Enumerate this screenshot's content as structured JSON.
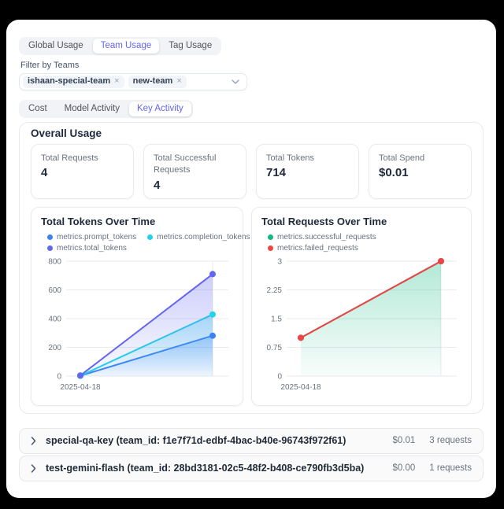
{
  "primary_tabs": [
    {
      "label": "Global Usage",
      "active": false
    },
    {
      "label": "Team Usage",
      "active": true
    },
    {
      "label": "Tag Usage",
      "active": false
    }
  ],
  "filter": {
    "label": "Filter by Teams",
    "selected_teams": [
      "ishaan-special-team",
      "new-team"
    ]
  },
  "secondary_tabs": [
    {
      "label": "Cost",
      "active": false
    },
    {
      "label": "Model Activity",
      "active": false
    },
    {
      "label": "Key Activity",
      "active": true
    }
  ],
  "overall_usage": {
    "title": "Overall Usage",
    "stats": [
      {
        "label": "Total Requests",
        "value": "4"
      },
      {
        "label": "Total Successful Requests",
        "value": "4"
      },
      {
        "label": "Total Tokens",
        "value": "714"
      },
      {
        "label": "Total Spend",
        "value": "$0.01"
      }
    ]
  },
  "chart_data": [
    {
      "type": "area",
      "title": "Total Tokens Over Time",
      "categories": [
        "2025-04-18",
        ""
      ],
      "x_tick_labels": [
        "2025-04-18"
      ],
      "series": [
        {
          "name": "metrics.prompt_tokens",
          "color": "#3b82f6",
          "values": [
            2,
            281
          ],
          "area": true
        },
        {
          "name": "metrics.completion_tokens",
          "color": "#22d3ee",
          "values": [
            2,
            429
          ],
          "area": true
        },
        {
          "name": "metrics.total_tokens",
          "color": "#6366f1",
          "values": [
            4,
            710
          ],
          "area": true
        }
      ],
      "ylim": [
        0,
        800
      ],
      "yticks": [
        0,
        200,
        400,
        600,
        800
      ],
      "grid": true,
      "legend_position": "top"
    },
    {
      "type": "area",
      "title": "Total Requests Over Time",
      "categories": [
        "2025-04-18",
        ""
      ],
      "x_tick_labels": [
        "2025-04-18"
      ],
      "series": [
        {
          "name": "metrics.successful_requests",
          "color": "#10b981",
          "values": [
            1,
            3
          ],
          "area": true
        },
        {
          "name": "metrics.failed_requests",
          "color": "#ef4444",
          "values": [
            1,
            3
          ],
          "area": false
        }
      ],
      "ylim": [
        0,
        3
      ],
      "yticks": [
        0,
        0.75,
        1.5,
        2.25,
        3
      ],
      "grid": true,
      "legend_position": "top"
    }
  ],
  "key_rows": [
    {
      "name": "special-qa-key (team_id: f1e7f71d-edbf-4bac-b40e-96743f972f61)",
      "spend": "$0.01",
      "requests": "3 requests"
    },
    {
      "name": "test-gemini-flash (team_id: 28bd3181-02c5-48f2-b408-ce790fb3d5ba)",
      "spend": "$0.00",
      "requests": "1 requests"
    }
  ],
  "colors": {
    "accent": "#6366f1",
    "ink": "#1e293b",
    "muted": "#6b7280",
    "grid": "#e8eaee",
    "prompt_tokens": "#3b82f6",
    "completion_tokens": "#22d3ee",
    "total_tokens": "#6366f1",
    "successful_requests": "#10b981",
    "failed_requests": "#ef4444"
  }
}
